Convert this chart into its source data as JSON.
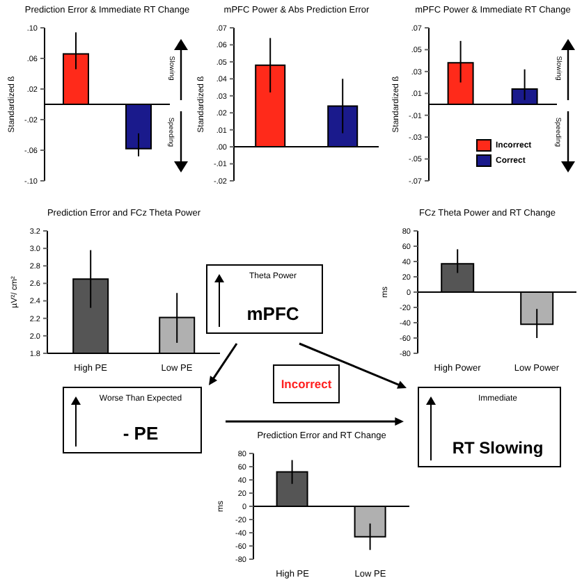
{
  "chart_data": [
    {
      "type": "bar",
      "title": "Prediction Error & Immediate RT Change",
      "ylabel": "Standardized ß",
      "categories": [
        null,
        null
      ],
      "values": [
        0.066,
        -0.058
      ],
      "colors": [
        "#ff2a1a",
        "#1a1a8c"
      ],
      "errors": [
        [
          0.046,
          0.094
        ],
        [
          -0.068,
          -0.038
        ]
      ],
      "ylim": [
        -0.1,
        0.1
      ],
      "yticks": [
        {
          "value": 0.1,
          "label": ".10"
        },
        {
          "value": 0.06,
          "label": ".06"
        },
        {
          "value": 0.02,
          "label": ".02"
        },
        {
          "value": -0.02,
          "label": "-.02"
        },
        {
          "value": -0.06,
          "label": "-.06"
        },
        {
          "value": -0.1,
          "label": "-.10"
        }
      ],
      "annotations": [
        "Slowing",
        "Speeding"
      ]
    },
    {
      "type": "bar",
      "title": "mPFC Power & Abs Prediction Error",
      "ylabel": "Standardized ß",
      "categories": [
        null,
        null
      ],
      "values": [
        0.048,
        0.024
      ],
      "colors": [
        "#ff2a1a",
        "#1a1a8c"
      ],
      "errors": [
        [
          0.032,
          0.064
        ],
        [
          0.008,
          0.04
        ]
      ],
      "ylim": [
        -0.02,
        0.07
      ],
      "yticks": [
        {
          "value": 0.07,
          "label": ".07"
        },
        {
          "value": 0.06,
          "label": ".06"
        },
        {
          "value": 0.05,
          "label": ".05"
        },
        {
          "value": 0.04,
          "label": ".04"
        },
        {
          "value": 0.03,
          "label": ".03"
        },
        {
          "value": 0.02,
          "label": ".02"
        },
        {
          "value": 0.01,
          "label": ".01"
        },
        {
          "value": 0,
          "label": ".00"
        },
        {
          "value": -0.01,
          "label": "-.01"
        },
        {
          "value": -0.02,
          "label": "-.02"
        }
      ]
    },
    {
      "type": "bar",
      "title": "mPFC Power & Immediate RT Change",
      "ylabel": "Standardized ß",
      "categories": [
        null,
        null
      ],
      "series": [
        {
          "name": "Incorrect",
          "color": "#ff2a1a",
          "values": [
            0.038,
            null
          ],
          "errors": [
            [
              0.02,
              0.058
            ],
            null
          ]
        },
        {
          "name": "Correct",
          "color": "#1a1a8c",
          "values": [
            null,
            0.014
          ],
          "errors": [
            null,
            [
              0.004,
              0.032
            ]
          ]
        }
      ],
      "ylim": [
        -0.07,
        0.07
      ],
      "yticks": [
        {
          "value": 0.07,
          "label": ".07"
        },
        {
          "value": 0.05,
          "label": ".05"
        },
        {
          "value": 0.03,
          "label": ".03"
        },
        {
          "value": 0.01,
          "label": ".01"
        },
        {
          "value": -0.01,
          "label": "-.01"
        },
        {
          "value": -0.03,
          "label": "-.03"
        },
        {
          "value": -0.05,
          "label": "-.05"
        },
        {
          "value": -0.07,
          "label": "-.07"
        }
      ],
      "legend": "bottom right",
      "annotations": [
        "Slowing",
        "Speeding"
      ]
    },
    {
      "type": "bar",
      "title": "Prediction Error and FCz Theta Power",
      "ylabel": "µV²/ cm²",
      "categories": [
        "High PE",
        "Low PE"
      ],
      "values": [
        2.65,
        2.21
      ],
      "colors": [
        "#555555",
        "#b0b0b0"
      ],
      "errors": [
        [
          2.32,
          2.98
        ],
        [
          1.92,
          2.49
        ]
      ],
      "ylim": [
        1.8,
        3.2
      ],
      "yticks": [
        1.8,
        {
          "value": 2.0,
          "label": "2.0"
        },
        2.2,
        2.4,
        2.6,
        2.8,
        {
          "value": 3.0,
          "label": "3.0"
        },
        3.2
      ]
    },
    {
      "type": "bar",
      "title": "FCz Theta Power and RT Change",
      "ylabel": "ms",
      "categories": [
        "High Power",
        "Low Power"
      ],
      "values": [
        37,
        -42
      ],
      "colors": [
        "#555555",
        "#b0b0b0"
      ],
      "errors": [
        [
          25,
          56
        ],
        [
          -60,
          -22
        ]
      ],
      "ylim": [
        -80,
        80
      ],
      "yticks": [
        80,
        60,
        40,
        20,
        0,
        -20,
        -40,
        -60,
        -80
      ]
    },
    {
      "type": "other",
      "annotations": [
        "Theta Power",
        "mPFC",
        "Worse Than Expected",
        "- PE",
        "Immediate",
        "RT Slowing",
        "Incorrect"
      ]
    },
    {
      "type": "bar",
      "title": "Prediction Error and RT Change",
      "ylabel": "ms",
      "categories": [
        "High PE",
        "Low PE"
      ],
      "values": [
        52,
        -46
      ],
      "colors": [
        "#555555",
        "#b0b0b0"
      ],
      "errors": [
        [
          34,
          70
        ],
        [
          -66,
          -26
        ]
      ],
      "ylim": [
        -80,
        80
      ],
      "yticks": [
        80,
        60,
        40,
        20,
        0,
        -20,
        -40,
        -60,
        -80
      ]
    }
  ]
}
